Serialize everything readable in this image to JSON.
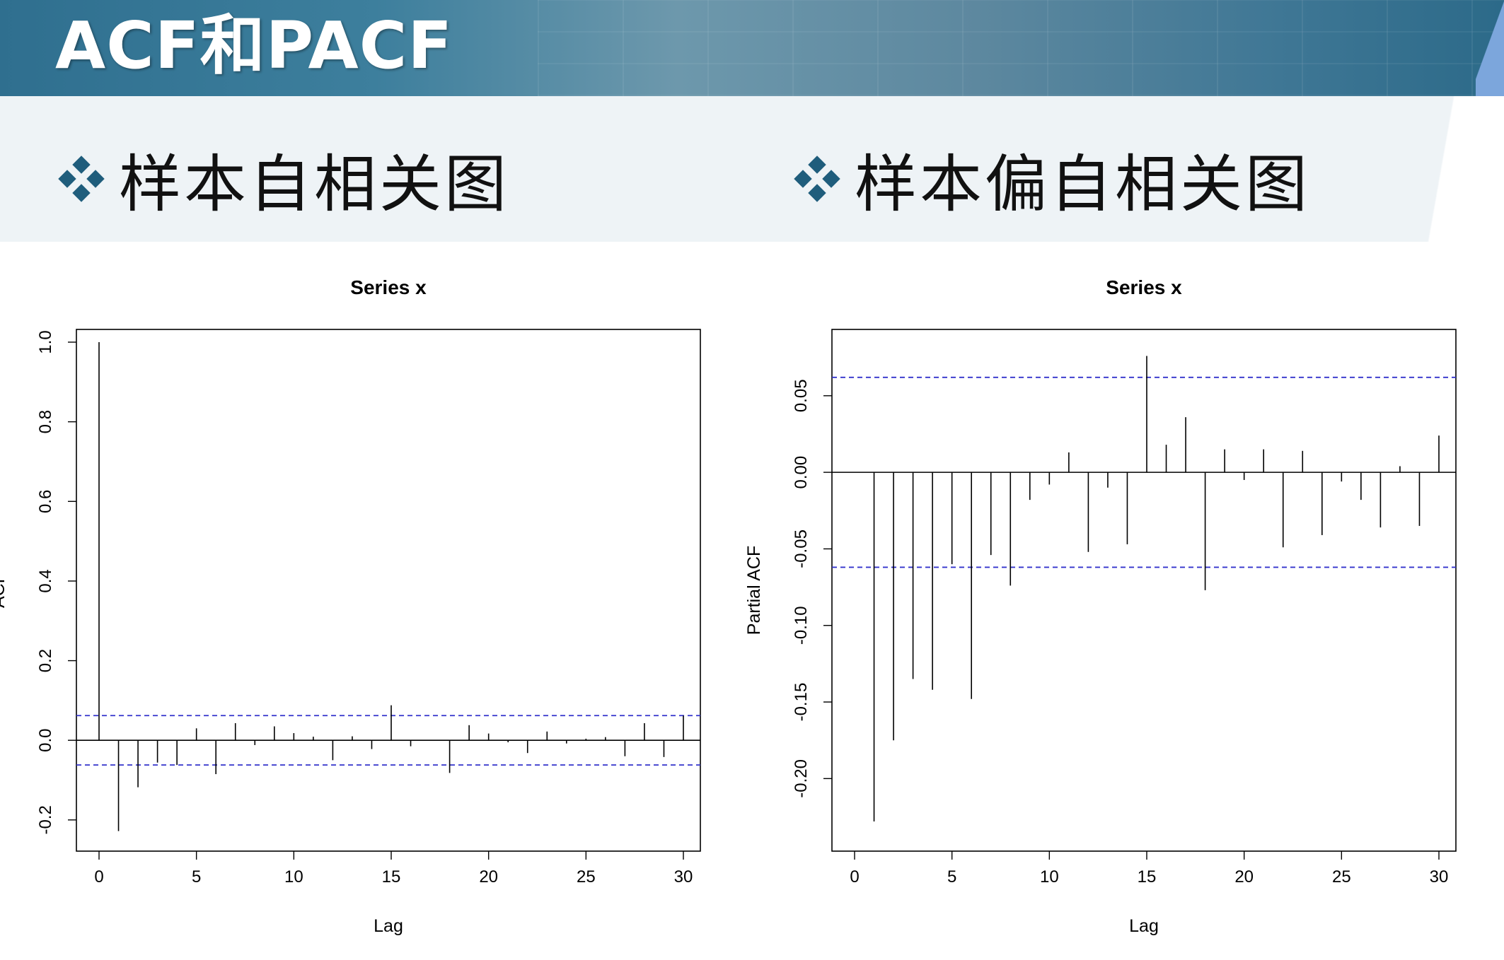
{
  "header": {
    "title": "ACF和PACF",
    "heading_left": "样本自相关图",
    "heading_right": "样本偏自相关图",
    "bullet_icon": "diamond-bullet-icon",
    "accent_color": "#1f5d7c"
  },
  "chart_data": [
    {
      "type": "bar",
      "title": "Series  x",
      "xlabel": "Lag",
      "ylabel": "ACF",
      "xlim": [
        0,
        30
      ],
      "ylim": [
        -0.25,
        1.0
      ],
      "xticks": [
        "0",
        "5",
        "10",
        "15",
        "20",
        "25",
        "30"
      ],
      "yticks": [
        "-0.2",
        "0.0",
        "0.2",
        "0.4",
        "0.6",
        "0.8",
        "1.0"
      ],
      "confidence_bound": 0.062,
      "confidence_color": "#3333cc",
      "lags": [
        0,
        1,
        2,
        3,
        4,
        5,
        6,
        7,
        8,
        9,
        10,
        11,
        12,
        13,
        14,
        15,
        16,
        17,
        18,
        19,
        20,
        21,
        22,
        23,
        24,
        25,
        26,
        27,
        28,
        29,
        30
      ],
      "values": [
        1.0,
        -0.228,
        -0.118,
        -0.056,
        -0.062,
        0.03,
        -0.085,
        0.043,
        -0.012,
        0.035,
        0.018,
        0.009,
        -0.05,
        0.01,
        -0.022,
        0.088,
        -0.015,
        0.0,
        -0.082,
        0.038,
        0.017,
        -0.005,
        -0.032,
        0.022,
        -0.008,
        0.004,
        0.008,
        -0.04,
        0.043,
        -0.042,
        0.062
      ]
    },
    {
      "type": "bar",
      "title": "Series  x",
      "xlabel": "Lag",
      "ylabel": "Partial ACF",
      "xlim": [
        0,
        30
      ],
      "ylim": [
        -0.24,
        0.085
      ],
      "xticks": [
        "0",
        "5",
        "10",
        "15",
        "20",
        "25",
        "30"
      ],
      "yticks": [
        "-0.20",
        "-0.15",
        "-0.10",
        "-0.05",
        "0.00",
        "0.05"
      ],
      "confidence_bound": 0.062,
      "confidence_color": "#3333cc",
      "lags": [
        1,
        2,
        3,
        4,
        5,
        6,
        7,
        8,
        9,
        10,
        11,
        12,
        13,
        14,
        15,
        16,
        17,
        18,
        19,
        20,
        21,
        22,
        23,
        24,
        25,
        26,
        27,
        28,
        29,
        30
      ],
      "values": [
        -0.228,
        -0.175,
        -0.135,
        -0.142,
        -0.06,
        -0.148,
        -0.054,
        -0.074,
        -0.018,
        -0.008,
        0.013,
        -0.052,
        -0.01,
        -0.047,
        0.076,
        0.018,
        0.036,
        -0.077,
        0.015,
        -0.005,
        0.015,
        -0.049,
        0.014,
        -0.041,
        -0.006,
        -0.018,
        -0.036,
        0.004,
        -0.035,
        0.024
      ]
    }
  ]
}
